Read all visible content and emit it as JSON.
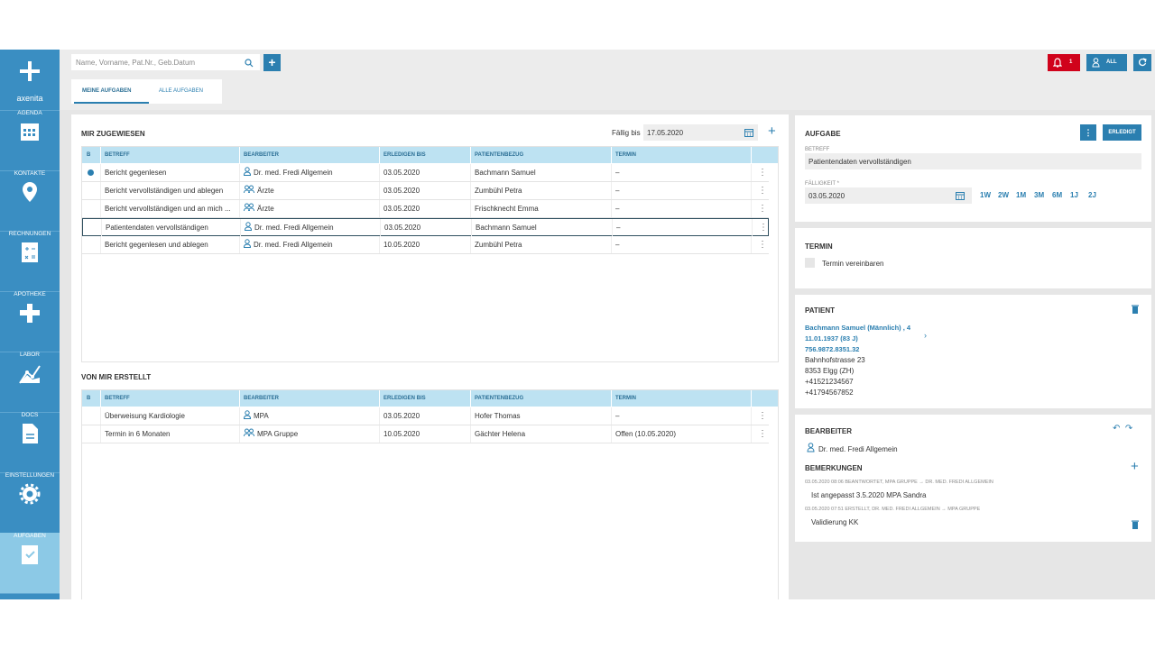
{
  "sidebar": {
    "brand": "axenita",
    "items": [
      "AGENDA",
      "KONTAKTE",
      "RECHNUNGEN",
      "APOTHEKE",
      "LABOR",
      "DOCS",
      "EINSTELLUNGEN",
      "AUFGABEN"
    ]
  },
  "topbar": {
    "search_placeholder": "Name, Vorname, Pat.Nr., Geb.Datum",
    "notification_count": "1",
    "user_filter": "ALL"
  },
  "tabs": [
    "MEINE AUFGABEN",
    "ALLE AUFGABEN"
  ],
  "assigned": {
    "title": "MIR ZUGEWIESEN",
    "due_label": "Fällig bis",
    "due_date": "17.05.2020",
    "columns": [
      "B",
      "BETREFF",
      "BEARBEITER",
      "ERLEDIGEN BIS",
      "PATIENTENBEZUG",
      "TERMIN"
    ],
    "rows": [
      [
        "Bericht gegenlesen",
        "Dr. med. Fredi Allgemein",
        "03.05.2020",
        "Bachmann Samuel",
        "–"
      ],
      [
        "Bericht vervollständigen und ablegen",
        "Ärzte",
        "03.05.2020",
        "Zumbühl Petra",
        "–"
      ],
      [
        "Bericht vervollständigen und an mich ...",
        "Ärzte",
        "03.05.2020",
        "Frischknecht Emma",
        "–"
      ],
      [
        "Patientendaten vervollständigen",
        "Dr. med. Fredi Allgemein",
        "03.05.2020",
        "Bachmann Samuel",
        "–"
      ],
      [
        "Bericht gegenlesen und ablegen",
        "Dr. med. Fredi Allgemein",
        "10.05.2020",
        "Zumbühl Petra",
        "–"
      ]
    ]
  },
  "created": {
    "title": "VON MIR ERSTELLT",
    "columns": [
      "B",
      "BETREFF",
      "BEARBEITER",
      "ERLEDIGEN BIS",
      "PATIENTENBEZUG",
      "TERMIN"
    ],
    "rows": [
      [
        "Überweisung Kardiologie",
        "MPA",
        "03.05.2020",
        "Hofer Thomas",
        "–"
      ],
      [
        "Termin in 6 Monaten",
        "MPA Gruppe",
        "10.05.2020",
        "Gächter Helena",
        "Offen (10.05.2020)"
      ]
    ]
  },
  "task": {
    "title": "AUFGABE",
    "done_button": "ERLEDIGT",
    "subject_label": "BETREFF",
    "subject": "Patientendaten vervollständigen",
    "due_label": "FÄLLIGKEIT *",
    "due": "03.05.2020",
    "ranges": [
      "1W",
      "2W",
      "1M",
      "3M",
      "6M",
      "1J",
      "2J"
    ]
  },
  "appointment": {
    "title": "TERMIN",
    "checkbox_label": "Termin vereinbaren"
  },
  "patient": {
    "title": "PATIENT",
    "links": [
      "Bachmann Samuel (Männlich) , 4",
      "11.01.1937 (83 J)",
      "756.9872.8351.32"
    ],
    "lines": [
      "Bahnhofstrasse 23",
      "8353 Elgg (ZH)",
      "+41521234567",
      "+41794567852"
    ]
  },
  "assignee": {
    "title": "BEARBEITER",
    "name": "Dr. med. Fredi Allgemein"
  },
  "remarks": {
    "title": "BEMERKUNGEN",
    "items": [
      {
        "meta": "03.05.2020 08:06 BEANTWORTET, MPA GRUPPE → DR. MED. FREDI ALLGEMEIN",
        "text": "Ist angepasst 3.5.2020 MPA Sandra"
      },
      {
        "meta": "03.05.2020 07:51 ERSTELLT, DR. MED. FREDI ALLGEMEIN → MPA GRUPPE",
        "text": "Validierung KK"
      }
    ]
  }
}
